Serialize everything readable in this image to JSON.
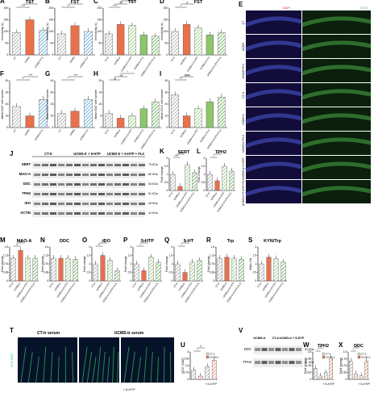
{
  "panels": {
    "A": {
      "letter": "A",
      "title": "TST",
      "ylabel": "Immobility (s)",
      "groups": [
        "CT",
        "UCMS",
        "UCMS+FLX"
      ],
      "sig": [
        "****",
        "**"
      ]
    },
    "B": {
      "letter": "B",
      "title": "FST",
      "ylabel": "Immobility (s)",
      "groups": [
        "CT",
        "UCMS",
        "UCMS+FLX"
      ],
      "sig": [
        "**",
        "*"
      ]
    },
    "C": {
      "letter": "C",
      "title": "TST",
      "ylabel": "Immobility (s)",
      "groups": [
        "CT-tr",
        "UCMS-tr",
        "UCMS-tr+5-HTP",
        "UCMS-tr+FLX",
        "UCMS-tr+5-HTP+FLX"
      ],
      "sig": [
        "****",
        "##",
        "*"
      ]
    },
    "D": {
      "letter": "D",
      "title": "FST",
      "ylabel": "Immobility (s)",
      "groups": [
        "CT-tr",
        "UCMS-tr",
        "UCMS-tr+5-HTP",
        "UCMS-tr+FLX",
        "UCMS-tr+5-HTP+FLX"
      ],
      "sig": [
        "*",
        "#"
      ]
    },
    "E": {
      "letter": "E",
      "stain_left": "DAPI",
      "stain_right": "DCX",
      "rows": [
        "CT",
        "UCMS",
        "UCMS+FLX",
        "CT-tr",
        "UCMS-tr",
        "UCMS-tr+FLX",
        "UCMS-tr+5-HTP",
        "UCMS-tr+5-HTP+FLX"
      ]
    },
    "F": {
      "letter": "F",
      "ylabel": "Mean Ki67 cell number",
      "sig": [
        "**",
        "****"
      ]
    },
    "G": {
      "letter": "G",
      "ylabel": "Mean DCX cell number",
      "sig": [
        "*",
        "****"
      ]
    },
    "H": {
      "letter": "H",
      "ylabel": "Mean Ki67 cell number",
      "sig": [
        "ns",
        "ns",
        "*"
      ]
    },
    "I": {
      "letter": "I",
      "ylabel": "Mean DCX cell number",
      "sig": [
        "***",
        "####"
      ]
    },
    "J": {
      "letter": "J",
      "cols": [
        "CT-tr",
        "UCMS-tr + 5-HTP",
        "UCMS-tr + 5-HTP + FLX"
      ],
      "bands": [
        "SERT",
        "MAO-A",
        "DDC",
        "TPH2",
        "IDO",
        "ACTIN"
      ],
      "kda": [
        "75 KDa",
        "60 KDa",
        "53 KDa",
        "51 KDa",
        "45 KDa",
        "42 KDa"
      ]
    },
    "K": {
      "letter": "K",
      "title": "SERT",
      "ylabel": "Fold change",
      "sig": [
        "****",
        "***"
      ]
    },
    "L": {
      "letter": "L",
      "title": "TPH2",
      "ylabel": "Fold change",
      "sig": [
        "*",
        "**"
      ]
    },
    "M": {
      "letter": "M",
      "title": "MAO-A",
      "ylabel": "Fold change",
      "sig": [
        "**",
        "##"
      ]
    },
    "N": {
      "letter": "N",
      "title": "DDC",
      "ylabel": "Fold change"
    },
    "O": {
      "letter": "O",
      "title": "IDO",
      "ylabel": "Fold change",
      "sig": [
        "**",
        "***"
      ]
    },
    "P": {
      "letter": "P",
      "title": "5-HTP",
      "ylabel": "Fold change",
      "sig": [
        "*",
        "**"
      ]
    },
    "Q": {
      "letter": "Q",
      "title": "5-HT",
      "ylabel": "Fold change",
      "sig": [
        "*",
        "**"
      ]
    },
    "R": {
      "letter": "R",
      "title": "Trp",
      "ylabel": "Fold change"
    },
    "S": {
      "letter": "S",
      "title": "KYN/Trp",
      "ylabel": "Ratio (%)"
    },
    "T": {
      "letter": "T",
      "left_title": "CT-tr serum",
      "right_title": "UCMS-tr serum",
      "stain": "DCX DAPI",
      "bottom": "+ 5-HTP"
    },
    "U": {
      "letter": "U",
      "ylabel": "DCX / DAPI",
      "legend": [
        "CT-tr",
        "UCMS-tr"
      ],
      "bottom": "+ 5-HTP",
      "sig": [
        "*",
        "**"
      ]
    },
    "V": {
      "letter": "V",
      "cols": [
        "UCMS-tr",
        "CT-tr",
        "UCMS-tr + 5-HTP"
      ],
      "bands": [
        "DDC",
        "TPH2"
      ],
      "kda": [
        "53 KDa",
        "51 KDa"
      ]
    },
    "W": {
      "letter": "W",
      "title": "TPH2",
      "ylabel": "Fold change",
      "legend": [
        "CT-tr",
        "UCMS-tr"
      ],
      "bottom": "+ 5-HTP",
      "sig": [
        "*",
        "**"
      ]
    },
    "X": {
      "letter": "X",
      "title": "DDC",
      "ylabel": "Fold change",
      "legend": [
        "CT-tr",
        "UCMS-tr"
      ],
      "bottom": "+ 5-HTP",
      "sig": [
        "*",
        "**"
      ]
    }
  },
  "colors": {
    "ct": "#ffffff",
    "ucms": "#e8704a",
    "flx": "#3b8fc9",
    "htp": "#a6cfe8",
    "green": "#8cc56a",
    "green_dark": "#3e9b2c"
  },
  "chart_data": [
    {
      "type": "bar",
      "panel": "A",
      "title": "TST",
      "categories": [
        "CT",
        "UCMS",
        "UCMS+FLX"
      ],
      "values": [
        95,
        150,
        105
      ],
      "ylim": [
        0,
        200
      ],
      "ylabel": "Immobility (s)"
    },
    {
      "type": "bar",
      "panel": "B",
      "title": "FST",
      "categories": [
        "CT",
        "UCMS",
        "UCMS+FLX"
      ],
      "values": [
        90,
        125,
        100
      ],
      "ylim": [
        0,
        200
      ],
      "ylabel": "Immobility (s)"
    },
    {
      "type": "bar",
      "panel": "C",
      "title": "TST",
      "categories": [
        "CT-tr",
        "UCMS-tr",
        "UCMS-tr+5-HTP",
        "UCMS-tr+FLX",
        "UCMS-tr+5-HTP+FLX"
      ],
      "values": [
        90,
        130,
        125,
        85,
        80
      ],
      "ylim": [
        0,
        200
      ],
      "ylabel": "Immobility (s)"
    },
    {
      "type": "bar",
      "panel": "D",
      "title": "FST",
      "categories": [
        "CT-tr",
        "UCMS-tr",
        "UCMS-tr+5-HTP",
        "UCMS-tr+FLX",
        "UCMS-tr+5-HTP+FLX"
      ],
      "values": [
        100,
        130,
        115,
        85,
        95
      ],
      "ylim": [
        0,
        200
      ],
      "ylabel": "Immobility (s)"
    },
    {
      "type": "bar",
      "panel": "F",
      "categories": [
        "CT",
        "UCMS",
        "UCMS+FLX"
      ],
      "values": [
        18,
        10,
        24
      ],
      "ylim": [
        0,
        40
      ],
      "ylabel": "Mean Ki67 cell number"
    },
    {
      "type": "bar",
      "panel": "G",
      "categories": [
        "CT",
        "UCMS",
        "UCMS+FLX"
      ],
      "values": [
        12,
        14,
        24
      ],
      "ylim": [
        0,
        40
      ],
      "ylabel": "Mean DCX cell number"
    },
    {
      "type": "bar",
      "panel": "H",
      "categories": [
        "CT-tr",
        "UCMS-tr",
        "UCMS-tr+5-HTP",
        "UCMS-tr+FLX",
        "UCMS-tr+5-HTP+FLX"
      ],
      "values": [
        6,
        4,
        5,
        8,
        11
      ],
      "ylim": [
        0,
        20
      ],
      "ylabel": "Mean Ki67 cell number"
    },
    {
      "type": "bar",
      "panel": "I",
      "categories": [
        "CT-tr",
        "UCMS-tr",
        "UCMS-tr+5-HTP",
        "UCMS-tr+FLX",
        "UCMS-tr+5-HTP+FLX"
      ],
      "values": [
        28,
        10,
        16,
        22,
        26
      ],
      "ylim": [
        0,
        40
      ],
      "ylabel": "Mean DCX cell number"
    },
    {
      "type": "bar",
      "panel": "K",
      "title": "SERT",
      "categories": [
        "CT-tr",
        "UCMS-tr",
        "UCMS-tr+5-HTP",
        "UCMS-tr+5-HTP+FLX"
      ],
      "values": [
        1.0,
        0.25,
        1.6,
        1.1
      ],
      "ylim": [
        0,
        2
      ]
    },
    {
      "type": "bar",
      "panel": "L",
      "title": "TPH2",
      "categories": [
        "CT-tr",
        "UCMS-tr",
        "UCMS-tr+5-HTP",
        "UCMS-tr+5-HTP+FLX"
      ],
      "values": [
        1.0,
        0.6,
        1.5,
        1.2
      ],
      "ylim": [
        0,
        2
      ]
    },
    {
      "type": "bar",
      "panel": "M",
      "title": "MAO-A",
      "categories": [
        "CT-tr",
        "UCMS-tr",
        "UCMS-tr+5-HTP",
        "UCMS-tr+5-HTP+FLX"
      ],
      "values": [
        1.0,
        1.35,
        1.0,
        1.0
      ],
      "ylim": [
        0,
        1.5
      ]
    },
    {
      "type": "bar",
      "panel": "N",
      "title": "DDC",
      "categories": [
        "CT-tr",
        "UCMS-tr",
        "UCMS-tr+5-HTP",
        "UCMS-tr+5-HTP+FLX"
      ],
      "values": [
        1.0,
        1.0,
        1.0,
        0.95
      ],
      "ylim": [
        0,
        1.5
      ]
    },
    {
      "type": "bar",
      "panel": "O",
      "title": "IDO",
      "categories": [
        "CT-tr",
        "UCMS-tr",
        "UCMS-tr+5-HTP",
        "UCMS-tr+5-HTP+FLX"
      ],
      "values": [
        1.0,
        1.5,
        1.2,
        0.6
      ],
      "ylim": [
        0,
        2
      ]
    },
    {
      "type": "bar",
      "panel": "P",
      "title": "5-HTP",
      "categories": [
        "CT-tr",
        "UCMS-tr",
        "UCMS-tr+5-HTP",
        "UCMS-tr+5-HTP+FLX"
      ],
      "values": [
        1.0,
        0.6,
        1.4,
        1.1
      ],
      "ylim": [
        0,
        2
      ]
    },
    {
      "type": "bar",
      "panel": "Q",
      "title": "5-HT",
      "categories": [
        "CT-tr",
        "UCMS-tr",
        "UCMS-tr+5-HTP",
        "UCMS-tr+5-HTP+FLX"
      ],
      "values": [
        1.0,
        0.5,
        1.1,
        1.2
      ],
      "ylim": [
        0,
        2
      ]
    },
    {
      "type": "bar",
      "panel": "R",
      "title": "Trp",
      "categories": [
        "CT-tr",
        "UCMS-tr",
        "UCMS-tr+5-HTP",
        "UCMS-tr+5-HTP+FLX"
      ],
      "values": [
        1.0,
        1.05,
        1.0,
        0.95
      ],
      "ylim": [
        0,
        1.5
      ]
    },
    {
      "type": "bar",
      "panel": "S",
      "title": "KYN/Trp",
      "categories": [
        "CT-tr",
        "UCMS-tr",
        "UCMS-tr+5-HTP",
        "UCMS-tr+5-HTP+FLX"
      ],
      "values": [
        1.0,
        1.4,
        1.3,
        1.1
      ],
      "ylim": [
        0,
        2
      ]
    },
    {
      "type": "bar",
      "panel": "U",
      "categories": [
        "CT-tr",
        "UCMS-tr",
        "CT-tr",
        "UCMS-tr"
      ],
      "values": [
        1.0,
        0.35,
        1.4,
        2.1
      ],
      "ylim": [
        0,
        3
      ],
      "ylabel": "DCX / DAPI"
    },
    {
      "type": "bar",
      "panel": "W",
      "title": "TPH2",
      "categories": [
        "CT-tr",
        "UCMS-tr",
        "CT-tr",
        "UCMS-tr"
      ],
      "values": [
        1.0,
        0.3,
        0.6,
        1.9
      ],
      "ylim": [
        0,
        2.5
      ],
      "ylabel": "Fold change"
    },
    {
      "type": "bar",
      "panel": "X",
      "title": "DDC",
      "categories": [
        "CT-tr",
        "UCMS-tr",
        "CT-tr",
        "UCMS-tr"
      ],
      "values": [
        1.0,
        0.3,
        0.2,
        1.0
      ],
      "ylim": [
        0,
        1.5
      ],
      "ylabel": "Fold change"
    }
  ]
}
